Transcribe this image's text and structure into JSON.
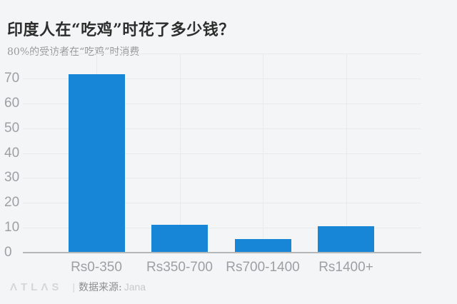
{
  "page": {
    "background": "#f4f5f6"
  },
  "header": {
    "title": "印度人在“吃鸡”时花了多少钱？",
    "subtitle": "80%的受访者在“吃鸡”时消费"
  },
  "footer": {
    "logo": "ΛTLΛS",
    "divider": "|",
    "source_label": "数据来源:",
    "source_value": "Jana"
  },
  "colors": {
    "background": "#f4f5f6",
    "bar": "#1886d7",
    "grid": "#e9ebeb",
    "axis": "#b4b6b7",
    "title": "#2d2d2d",
    "subtitle": "#97999b",
    "tick_label": "#9da0a2",
    "logo": "#d4d6d7",
    "source_label": "#8b8e90",
    "source_value": "#c6c8ca"
  },
  "chart_data": {
    "type": "bar",
    "title": "印度人在“吃鸡”时花了多少钱？",
    "subtitle": "80%的受访者在“吃鸡”时消费",
    "source": "数据来源: Jana",
    "categories": [
      "Rs0-350",
      "Rs350-700",
      "Rs700-1400",
      "Rs1400+"
    ],
    "values": [
      71.7,
      11.3,
      5.4,
      10.6
    ],
    "xlabel": "",
    "ylabel": "",
    "ylim": [
      0,
      80
    ],
    "yticks": [
      0,
      10,
      20,
      30,
      40,
      50,
      60,
      70
    ],
    "ygridlines": [
      10,
      20,
      30,
      40,
      50,
      60,
      70,
      80
    ],
    "grid": "horizontal and vertical, light gray",
    "legend": "none",
    "bar_color": "#1886d7"
  }
}
